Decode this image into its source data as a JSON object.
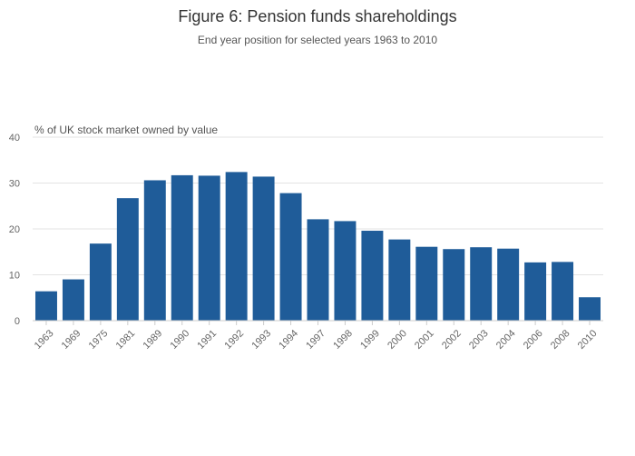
{
  "chart_data": {
    "type": "bar",
    "title": "Figure 6: Pension funds shareholdings",
    "subtitle": "End year position for selected years 1963 to 2010",
    "ylabel": "% of UK stock market owned by value",
    "xlabel": "",
    "ylim": [
      0,
      40
    ],
    "yticks": [
      0,
      10,
      20,
      30,
      40
    ],
    "grid": true,
    "bar_color": "#1f5c99",
    "categories": [
      "1963",
      "1969",
      "1975",
      "1981",
      "1989",
      "1990",
      "1991",
      "1992",
      "1993",
      "1994",
      "1997",
      "1998",
      "1999",
      "2000",
      "2001",
      "2002",
      "2003",
      "2004",
      "2006",
      "2008",
      "2010"
    ],
    "values": [
      6.4,
      9.0,
      16.8,
      26.7,
      30.6,
      31.7,
      31.6,
      32.4,
      31.4,
      27.8,
      22.1,
      21.7,
      19.6,
      17.7,
      16.1,
      15.6,
      16.0,
      15.7,
      12.7,
      12.8,
      5.1
    ]
  }
}
